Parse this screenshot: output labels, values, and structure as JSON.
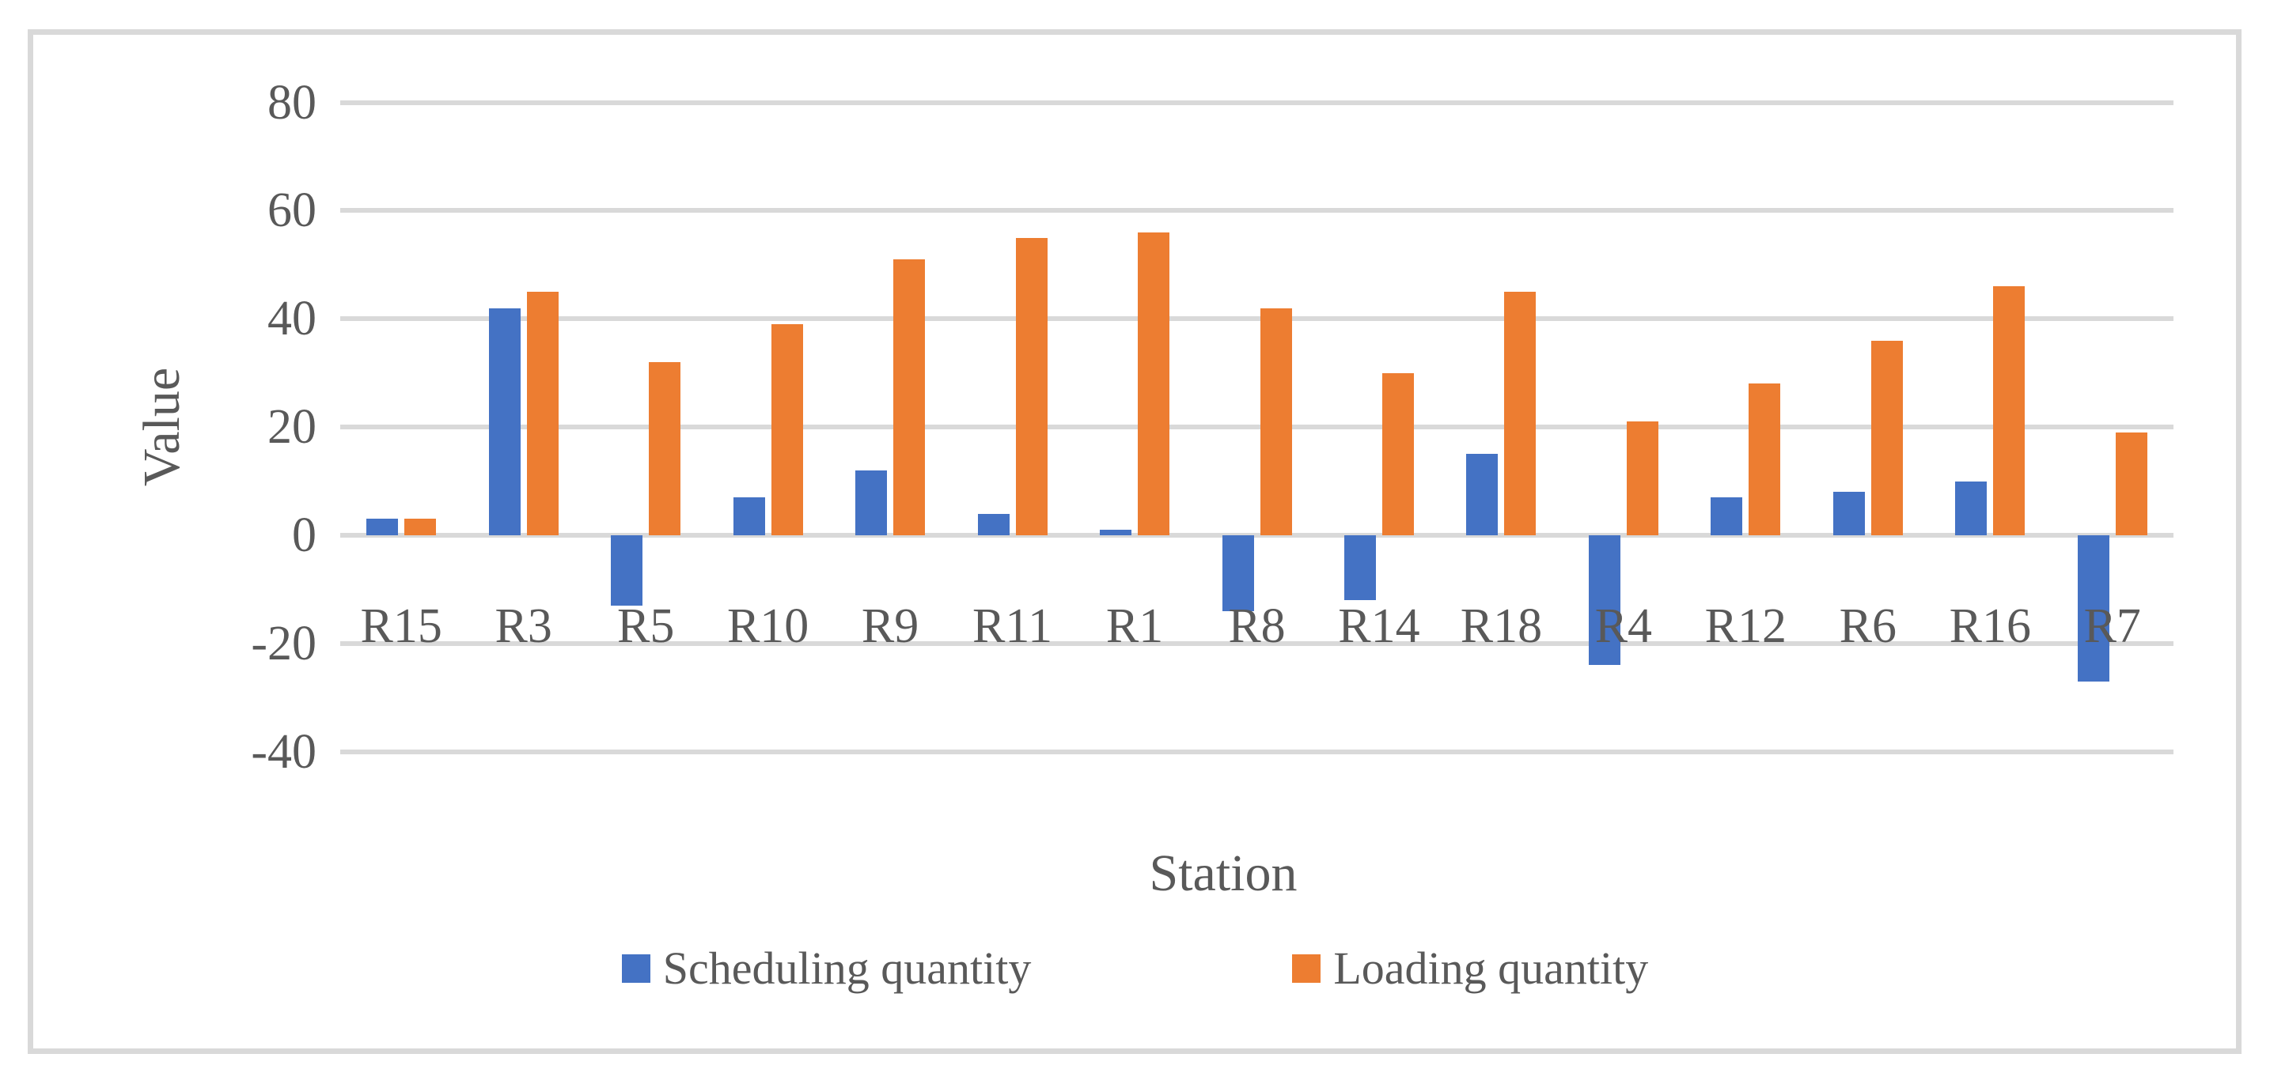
{
  "chart_data": {
    "type": "bar",
    "title": "",
    "xlabel": "Station",
    "ylabel": "Value",
    "categories": [
      "R15",
      "R3",
      "R5",
      "R10",
      "R9",
      "R11",
      "R1",
      "R8",
      "R14",
      "R18",
      "R4",
      "R12",
      "R6",
      "R16",
      "R7"
    ],
    "series": [
      {
        "name": "Scheduling quantity",
        "color": "#4472C4",
        "values": [
          3,
          42,
          -13,
          7,
          12,
          4,
          1,
          -14,
          -12,
          15,
          -24,
          7,
          8,
          10,
          -27
        ]
      },
      {
        "name": "Loading quantity",
        "color": "#ED7D31",
        "values": [
          3,
          45,
          32,
          39,
          51,
          55,
          56,
          42,
          30,
          45,
          21,
          28,
          36,
          46,
          19
        ]
      }
    ],
    "y_axis": {
      "min": -40,
      "max": 80,
      "tick_step": 20,
      "ticks": [
        80,
        60,
        40,
        20,
        0,
        -20,
        -40
      ]
    },
    "grid": true,
    "legend_position": "bottom",
    "colors": {
      "grid": "#d9d9d9",
      "frame": "#d9d9d9",
      "axis_text": "#595959",
      "background": "#ffffff"
    }
  }
}
